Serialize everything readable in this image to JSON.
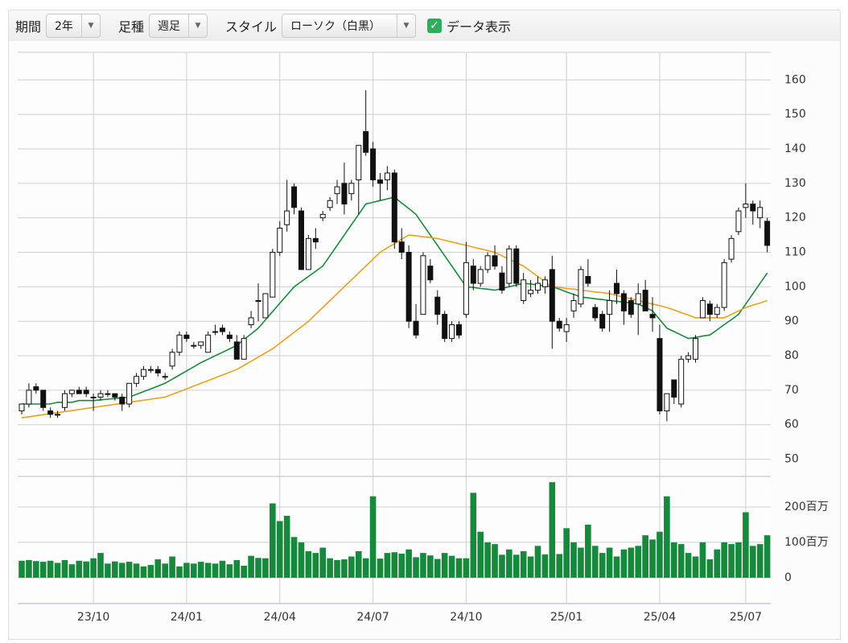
{
  "toolbar": {
    "period_label": "期間",
    "period_value": "2年",
    "bar_label": "足種",
    "bar_value": "週足",
    "style_label": "スタイル",
    "style_value": "ローソク（白黒）",
    "data_toggle": "データ表示"
  },
  "chart_data": {
    "type": "candlestick",
    "categories": [
      null,
      null,
      null,
      null,
      null,
      null,
      null,
      null,
      null,
      null,
      "23/10",
      null,
      null,
      null,
      null,
      null,
      null,
      null,
      null,
      null,
      null,
      null,
      null,
      "24/01",
      null,
      null,
      null,
      null,
      null,
      null,
      null,
      null,
      null,
      null,
      null,
      null,
      "24/04",
      null,
      null,
      null,
      null,
      null,
      null,
      null,
      null,
      null,
      null,
      null,
      null,
      "24/07",
      null,
      null,
      null,
      null,
      null,
      null,
      null,
      null,
      null,
      null,
      null,
      null,
      "24/10",
      null,
      null,
      null,
      null,
      null,
      null,
      null,
      null,
      null,
      null,
      null,
      null,
      null,
      "25/01",
      null,
      null,
      null,
      null,
      null,
      null,
      null,
      null,
      null,
      null,
      null,
      null,
      "25/04",
      null,
      null,
      null,
      null,
      null,
      null,
      null,
      null,
      null,
      null,
      null,
      "25/07",
      null,
      null,
      null
    ],
    "ohlc": [
      [
        64,
        66,
        63,
        66
      ],
      [
        66,
        72,
        65,
        70
      ],
      [
        71,
        72,
        69,
        70
      ],
      [
        70,
        70,
        64,
        65
      ],
      [
        64,
        65,
        62,
        63
      ],
      [
        63,
        64,
        62,
        63
      ],
      [
        65,
        70,
        64,
        69
      ],
      [
        69,
        70,
        68,
        70
      ],
      [
        70,
        71,
        69,
        69
      ],
      [
        70,
        71,
        68,
        69
      ],
      [
        68,
        69,
        64,
        68
      ],
      [
        68,
        70,
        67,
        69
      ],
      [
        69,
        70,
        68,
        69
      ],
      [
        69,
        69,
        67,
        68
      ],
      [
        68,
        69,
        64,
        66
      ],
      [
        66,
        72,
        65,
        72
      ],
      [
        72,
        75,
        71,
        74
      ],
      [
        74,
        77,
        73,
        76
      ],
      [
        76,
        77,
        75,
        76
      ],
      [
        76,
        77,
        74,
        75
      ],
      [
        74,
        75,
        73,
        74
      ],
      [
        77,
        82,
        76,
        81
      ],
      [
        81,
        87,
        80,
        86
      ],
      [
        86,
        87,
        84,
        85
      ],
      [
        83,
        84,
        82,
        83
      ],
      [
        83,
        84,
        82,
        84
      ],
      [
        81,
        87,
        81,
        86
      ],
      [
        87,
        89,
        86,
        87
      ],
      [
        88,
        89,
        86,
        87
      ],
      [
        86,
        87,
        84,
        85
      ],
      [
        84,
        86,
        79,
        79
      ],
      [
        79,
        86,
        79,
        85
      ],
      [
        89,
        93,
        88,
        91
      ],
      [
        96,
        101,
        90,
        96
      ],
      [
        91,
        98,
        91,
        98
      ],
      [
        97,
        111,
        97,
        110
      ],
      [
        110,
        119,
        109,
        117
      ],
      [
        118,
        131,
        116,
        122
      ],
      [
        129,
        130,
        121,
        123
      ],
      [
        122,
        123,
        105,
        105
      ],
      [
        105,
        115,
        105,
        114
      ],
      [
        114,
        117,
        111,
        113
      ],
      [
        120,
        122,
        119,
        121
      ],
      [
        123,
        126,
        122,
        125
      ],
      [
        127,
        131,
        124,
        129
      ],
      [
        130,
        136,
        121,
        124
      ],
      [
        127,
        131,
        125,
        130
      ],
      [
        131,
        141,
        121,
        141
      ],
      [
        145,
        157,
        138,
        139
      ],
      [
        140,
        142,
        129,
        131
      ],
      [
        131,
        133,
        125,
        130
      ],
      [
        131,
        135,
        128,
        133
      ],
      [
        133,
        134,
        111,
        113
      ],
      [
        113,
        117,
        108,
        110
      ],
      [
        110,
        112,
        88,
        90
      ],
      [
        90,
        95,
        85,
        86
      ],
      [
        92,
        110,
        92,
        109
      ],
      [
        106,
        108,
        101,
        102
      ],
      [
        97,
        99,
        89,
        92
      ],
      [
        92,
        93,
        84,
        85
      ],
      [
        85,
        90,
        84,
        89
      ],
      [
        89,
        90,
        85,
        86
      ],
      [
        92,
        113,
        91,
        107
      ],
      [
        106,
        108,
        99,
        101
      ],
      [
        101,
        106,
        100,
        105
      ],
      [
        105,
        110,
        104,
        109
      ],
      [
        109,
        112,
        105,
        106
      ],
      [
        104,
        106,
        98,
        99
      ],
      [
        101,
        112,
        100,
        111
      ],
      [
        111,
        112,
        100,
        101
      ],
      [
        96,
        104,
        95,
        102
      ],
      [
        98,
        102,
        97,
        99
      ],
      [
        99,
        103,
        98,
        101
      ],
      [
        100,
        103,
        98,
        102
      ],
      [
        105,
        109,
        82,
        90
      ],
      [
        90,
        91,
        87,
        88
      ],
      [
        87,
        91,
        84,
        89
      ],
      [
        93,
        98,
        91,
        96
      ],
      [
        95,
        106,
        94,
        105
      ],
      [
        103,
        108,
        100,
        101
      ],
      [
        94,
        95,
        90,
        91
      ],
      [
        92,
        93,
        87,
        88
      ],
      [
        92,
        99,
        87,
        96
      ],
      [
        101,
        105,
        95,
        98
      ],
      [
        98,
        99,
        89,
        93
      ],
      [
        96,
        97,
        91,
        92
      ],
      [
        95,
        101,
        86,
        98
      ],
      [
        99,
        102,
        93,
        93
      ],
      [
        92,
        97,
        87,
        91
      ],
      [
        85,
        89,
        63,
        64
      ],
      [
        64,
        69,
        61,
        69
      ],
      [
        73,
        73,
        66,
        68
      ],
      [
        66,
        80,
        65,
        79
      ],
      [
        79,
        81,
        78,
        80
      ],
      [
        79,
        86,
        78,
        85
      ],
      [
        91,
        97,
        91,
        96
      ],
      [
        95,
        96,
        90,
        92
      ],
      [
        92,
        95,
        91,
        94
      ],
      [
        94,
        108,
        93,
        107
      ],
      [
        108,
        115,
        107,
        114
      ],
      [
        116,
        123,
        115,
        122
      ],
      [
        123,
        130,
        120,
        124
      ],
      [
        124,
        125,
        118,
        122
      ],
      [
        120,
        125,
        117,
        123
      ],
      [
        119,
        120,
        110,
        112
      ]
    ],
    "ylim": [
      45,
      168
    ],
    "yticks": [
      50,
      60,
      70,
      80,
      90,
      100,
      110,
      120,
      130,
      140,
      150,
      160
    ],
    "grid": true,
    "moving_averages": [
      {
        "color": "#178a3e",
        "values": [
          66,
          66,
          66,
          66,
          66,
          66.5,
          66.5,
          66.5,
          67,
          67,
          67,
          67.2,
          67.4,
          67.6,
          67.8,
          68,
          68.8,
          69.6,
          70.4,
          71.2,
          72,
          73.2,
          74.4,
          75.6,
          76.8,
          78,
          79,
          80,
          81,
          82,
          83,
          84.7,
          86.3,
          88,
          90.4,
          92.8,
          95.2,
          97.6,
          100,
          101.5,
          103,
          104.5,
          106,
          109,
          112,
          115,
          118,
          121,
          124,
          124.5,
          125,
          125.5,
          126,
          124.3,
          122.7,
          121,
          118,
          115,
          112,
          109,
          106,
          103,
          100,
          99.8,
          99.5,
          99.3,
          99,
          99.5,
          100,
          100.5,
          101,
          100.8,
          100.5,
          100.3,
          100,
          99.3,
          98.5,
          97.8,
          97,
          96.8,
          96.5,
          96.3,
          96,
          95.8,
          95.5,
          95.3,
          95,
          94,
          93,
          90.5,
          88,
          87,
          86,
          85,
          85.3,
          85.7,
          86,
          87.5,
          89,
          90.5,
          92,
          95,
          98,
          101,
          104
        ]
      },
      {
        "color": "#e8a21c",
        "values": [
          62,
          62.3,
          62.6,
          62.9,
          63.2,
          63.5,
          63.8,
          64.1,
          64.4,
          64.7,
          65,
          65.3,
          65.6,
          65.9,
          66.2,
          66.5,
          66.8,
          67.1,
          67.4,
          67.7,
          68,
          68.8,
          69.6,
          70.4,
          71.2,
          72,
          72.8,
          73.6,
          74.4,
          75.2,
          76,
          77.2,
          78.4,
          79.6,
          80.8,
          82,
          83.6,
          85.2,
          86.8,
          88.4,
          90,
          92,
          94,
          96,
          98,
          100,
          102,
          104,
          106,
          108,
          110,
          111.3,
          112.5,
          113.8,
          115,
          114.8,
          114.5,
          114.3,
          114,
          113.5,
          113,
          112.5,
          112,
          111.5,
          111,
          110.5,
          110,
          109,
          108,
          107,
          106,
          104.5,
          103,
          101.5,
          100,
          99.8,
          99.5,
          99.3,
          99,
          98.8,
          98.5,
          98.3,
          98,
          97.5,
          97,
          96.5,
          96,
          95.5,
          95,
          94.5,
          94,
          93.3,
          92.5,
          91.8,
          91,
          91,
          91,
          91,
          91,
          92,
          93,
          94,
          94.7,
          95.3,
          96
        ]
      }
    ],
    "volume": {
      "color": "#16893c",
      "values": [
        48,
        50,
        47,
        45,
        48,
        42,
        50,
        38,
        48,
        46,
        55,
        70,
        40,
        46,
        42,
        45,
        40,
        32,
        36,
        52,
        40,
        60,
        32,
        42,
        40,
        45,
        42,
        40,
        48,
        38,
        50,
        34,
        62,
        56,
        55,
        210,
        160,
        175,
        115,
        100,
        75,
        70,
        85,
        55,
        50,
        52,
        60,
        75,
        55,
        230,
        54,
        70,
        72,
        68,
        80,
        58,
        70,
        63,
        53,
        70,
        62,
        55,
        55,
        240,
        130,
        100,
        95,
        65,
        80,
        65,
        75,
        60,
        90,
        66,
        270,
        67,
        140,
        100,
        85,
        150,
        90,
        70,
        85,
        60,
        80,
        85,
        90,
        120,
        108,
        130,
        230,
        100,
        95,
        70,
        60,
        100,
        52,
        80,
        100,
        95,
        100,
        185,
        90,
        95,
        120
      ],
      "ylim": [
        -73,
        284
      ],
      "yticks": [
        0,
        {
          "value": 100,
          "label": "100百万"
        },
        {
          "value": 200,
          "label": "200百万"
        }
      ]
    }
  }
}
